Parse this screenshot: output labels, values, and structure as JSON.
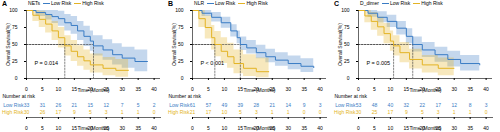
{
  "chart_data": [
    {
      "type": "step",
      "title": "A",
      "legend_title": "NETs",
      "legend": "top",
      "xlabel": "Time (Months)",
      "ylabel": "Overall Survival(%)",
      "xlim": [
        0,
        42
      ],
      "ylim": [
        0,
        100
      ],
      "xticks": [
        0,
        5,
        10,
        15,
        20,
        25,
        30,
        35,
        40
      ],
      "yticks": [
        0,
        25,
        50,
        75,
        100
      ],
      "annotation": "P = 0.014",
      "median_level": 50,
      "series": [
        {
          "name": "Low Risk",
          "color": "#3a7cc4",
          "median": 21,
          "x": [
            0,
            3,
            6,
            8,
            10,
            12,
            14,
            16,
            18,
            20,
            21,
            24,
            27,
            30,
            34,
            38
          ],
          "values": [
            100,
            97,
            94,
            91,
            88,
            82,
            78,
            70,
            62,
            55,
            48,
            42,
            35,
            30,
            25,
            25
          ],
          "lower": [
            100,
            91,
            86,
            81,
            77,
            70,
            65,
            56,
            47,
            40,
            33,
            27,
            20,
            15,
            10,
            10
          ],
          "upper": [
            100,
            100,
            100,
            100,
            99,
            94,
            91,
            84,
            77,
            70,
            63,
            57,
            51,
            46,
            42,
            42
          ]
        },
        {
          "name": "High Risk",
          "color": "#e3b324",
          "median": 12,
          "x": [
            0,
            2,
            4,
            6,
            8,
            10,
            12,
            14,
            16,
            18,
            20,
            24,
            28,
            32
          ],
          "values": [
            100,
            93,
            87,
            80,
            70,
            60,
            48,
            40,
            32,
            26,
            20,
            15,
            12,
            12
          ],
          "lower": [
            100,
            84,
            75,
            67,
            56,
            45,
            33,
            25,
            18,
            12,
            8,
            4,
            2,
            2
          ],
          "upper": [
            100,
            100,
            99,
            93,
            84,
            75,
            63,
            56,
            48,
            42,
            36,
            31,
            28,
            28
          ]
        }
      ],
      "risk_table": {
        "title": "Number at risk",
        "x": [
          0,
          5,
          10,
          15,
          20,
          25,
          30,
          35,
          40
        ],
        "rows": [
          {
            "name": "Low Risk",
            "color": "#3a7cc4",
            "values": [
              33,
              31,
              26,
              21,
              15,
              12,
              7,
              5,
              2
            ]
          },
          {
            "name": "High Risk",
            "color": "#e3b324",
            "values": [
              30,
              26,
              17,
              9,
              5,
              3,
              1,
              1,
              0
            ]
          }
        ]
      }
    },
    {
      "type": "step",
      "title": "B",
      "legend_title": "NLR",
      "legend": "top",
      "xlabel": "Time (Months)",
      "ylabel": "Overall Survival(%)",
      "xlim": [
        0,
        42
      ],
      "ylim": [
        0,
        100
      ],
      "xticks": [
        0,
        5,
        10,
        15,
        20,
        25,
        30,
        35,
        40
      ],
      "yticks": [
        0,
        25,
        50,
        75,
        100
      ],
      "annotation": "P < 0.001",
      "median_level": 50,
      "series": [
        {
          "name": "Low Risk",
          "color": "#3a7cc4",
          "median": 15,
          "x": [
            0,
            3,
            6,
            9,
            12,
            14,
            15,
            17,
            20,
            23,
            26,
            30,
            34,
            38
          ],
          "values": [
            100,
            96,
            90,
            82,
            70,
            60,
            50,
            45,
            38,
            32,
            27,
            22,
            18,
            16
          ],
          "lower": [
            100,
            91,
            83,
            74,
            61,
            51,
            41,
            36,
            29,
            23,
            18,
            13,
            9,
            7
          ],
          "upper": [
            100,
            100,
            97,
            90,
            79,
            70,
            61,
            56,
            49,
            43,
            38,
            33,
            29,
            27
          ]
        },
        {
          "name": "High Risk",
          "color": "#e3b324",
          "median": 7,
          "x": [
            0,
            2,
            4,
            6,
            7,
            9,
            11,
            13,
            16,
            20,
            24
          ],
          "values": [
            100,
            88,
            75,
            60,
            50,
            40,
            32,
            22,
            15,
            10,
            10
          ],
          "lower": [
            100,
            75,
            58,
            42,
            32,
            22,
            15,
            7,
            3,
            1,
            1
          ],
          "upper": [
            100,
            100,
            92,
            78,
            69,
            60,
            52,
            42,
            35,
            30,
            30
          ]
        }
      ],
      "risk_table": {
        "title": "Number at risk",
        "x": [
          0,
          5,
          10,
          15,
          20,
          25,
          30,
          35,
          40
        ],
        "rows": [
          {
            "name": "Low Risk",
            "color": "#3a7cc4",
            "values": [
              61,
              57,
              49,
              39,
              28,
              21,
              14,
              9,
              3
            ]
          },
          {
            "name": "High Risk",
            "color": "#e3b324",
            "values": [
              21,
              17,
              10,
              5,
              3,
              1,
              1,
              0,
              0
            ]
          }
        ]
      }
    },
    {
      "type": "step",
      "title": "C",
      "legend_title": "D_dimer",
      "legend": "top",
      "xlabel": "Time (Months)",
      "ylabel": "Overall Survival(%)",
      "xlim": [
        0,
        42
      ],
      "ylim": [
        0,
        100
      ],
      "xticks": [
        0,
        5,
        10,
        15,
        20,
        25,
        30,
        35,
        40
      ],
      "yticks": [
        0,
        25,
        50,
        75,
        100
      ],
      "annotation": "P = 0.005",
      "median_level": 50,
      "series": [
        {
          "name": "Low Risk",
          "color": "#3a7cc4",
          "median": 17,
          "x": [
            0,
            3,
            6,
            9,
            12,
            15,
            17,
            20,
            24,
            28,
            32,
            38
          ],
          "values": [
            100,
            96,
            90,
            84,
            74,
            62,
            50,
            42,
            35,
            28,
            22,
            20
          ],
          "lower": [
            100,
            90,
            82,
            75,
            64,
            51,
            39,
            31,
            24,
            17,
            11,
            9
          ],
          "upper": [
            100,
            100,
            98,
            93,
            84,
            73,
            61,
            53,
            46,
            40,
            34,
            32
          ]
        },
        {
          "name": "High Risk",
          "color": "#e3b324",
          "median": 11,
          "x": [
            0,
            2,
            4,
            6,
            8,
            10,
            11,
            13,
            16,
            20,
            25,
            30
          ],
          "values": [
            100,
            92,
            84,
            76,
            66,
            55,
            48,
            38,
            28,
            20,
            15,
            15
          ],
          "lower": [
            100,
            82,
            71,
            62,
            51,
            40,
            33,
            23,
            14,
            8,
            4,
            4
          ],
          "upper": [
            100,
            100,
            97,
            90,
            81,
            70,
            63,
            53,
            43,
            34,
            30,
            30
          ]
        }
      ],
      "risk_table": {
        "title": "Number at risk",
        "x": [
          0,
          5,
          10,
          15,
          20,
          25,
          30,
          35,
          40
        ],
        "rows": [
          {
            "name": "Low Risk",
            "color": "#3a7cc4",
            "values": [
              53,
              48,
              40,
              32,
              22,
              17,
              12,
              8,
              3
            ]
          },
          {
            "name": "High Risk",
            "color": "#e3b324",
            "values": [
              30,
              25,
              17,
              9,
              5,
              3,
              1,
              1,
              0
            ]
          }
        ]
      }
    }
  ]
}
